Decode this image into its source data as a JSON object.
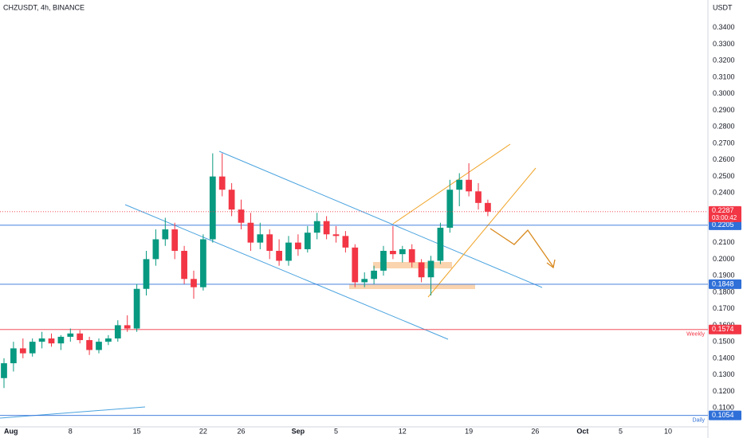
{
  "chart_data": {
    "type": "candlestick",
    "title": "CHZUSDT, 4h, BINANCE",
    "y_axis_label": "USDT",
    "x": [
      0,
      1,
      2,
      3,
      4,
      5,
      6,
      7,
      8,
      9,
      10,
      11,
      12,
      13,
      14,
      15,
      16,
      17,
      18,
      19,
      20,
      21,
      22,
      23,
      24,
      25,
      26,
      27,
      28,
      29,
      30,
      31,
      32,
      33,
      34,
      35,
      36,
      37,
      38,
      39,
      40,
      41,
      42,
      43,
      44,
      45,
      46,
      47,
      48,
      49,
      50,
      51
    ],
    "open": [
      0.128,
      0.137,
      0.146,
      0.143,
      0.15,
      0.152,
      0.149,
      0.153,
      0.155,
      0.151,
      0.145,
      0.15,
      0.152,
      0.16,
      0.158,
      0.182,
      0.2,
      0.212,
      0.218,
      0.205,
      0.188,
      0.183,
      0.212,
      0.25,
      0.242,
      0.23,
      0.222,
      0.21,
      0.215,
      0.205,
      0.199,
      0.21,
      0.206,
      0.216,
      0.223,
      0.215,
      0.214,
      0.207,
      0.186,
      0.188,
      0.193,
      0.205,
      0.203,
      0.206,
      0.198,
      0.189,
      0.199,
      0.219,
      0.242,
      0.248,
      0.241,
      0.234
    ],
    "high": [
      0.14,
      0.15,
      0.152,
      0.152,
      0.156,
      0.155,
      0.154,
      0.158,
      0.157,
      0.153,
      0.152,
      0.154,
      0.163,
      0.166,
      0.185,
      0.205,
      0.218,
      0.225,
      0.222,
      0.208,
      0.193,
      0.215,
      0.264,
      0.264,
      0.246,
      0.236,
      0.228,
      0.222,
      0.218,
      0.212,
      0.214,
      0.215,
      0.22,
      0.228,
      0.226,
      0.22,
      0.217,
      0.209,
      0.192,
      0.196,
      0.208,
      0.22,
      0.208,
      0.209,
      0.2,
      0.202,
      0.222,
      0.248,
      0.252,
      0.258,
      0.246,
      0.236
    ],
    "low": [
      0.122,
      0.132,
      0.14,
      0.141,
      0.146,
      0.147,
      0.145,
      0.15,
      0.149,
      0.142,
      0.143,
      0.148,
      0.15,
      0.156,
      0.156,
      0.178,
      0.196,
      0.208,
      0.2,
      0.185,
      0.176,
      0.181,
      0.21,
      0.238,
      0.226,
      0.218,
      0.205,
      0.206,
      0.2,
      0.196,
      0.196,
      0.202,
      0.204,
      0.212,
      0.212,
      0.21,
      0.204,
      0.183,
      0.183,
      0.185,
      0.19,
      0.2,
      0.198,
      0.195,
      0.186,
      0.178,
      0.197,
      0.216,
      0.232,
      0.238,
      0.23,
      0.226
    ],
    "close": [
      0.137,
      0.146,
      0.143,
      0.15,
      0.152,
      0.149,
      0.153,
      0.155,
      0.151,
      0.145,
      0.15,
      0.152,
      0.16,
      0.158,
      0.182,
      0.2,
      0.212,
      0.218,
      0.205,
      0.188,
      0.183,
      0.212,
      0.25,
      0.242,
      0.23,
      0.222,
      0.21,
      0.215,
      0.205,
      0.199,
      0.21,
      0.206,
      0.216,
      0.223,
      0.215,
      0.214,
      0.207,
      0.186,
      0.188,
      0.193,
      0.205,
      0.203,
      0.206,
      0.198,
      0.189,
      0.199,
      0.219,
      0.242,
      0.248,
      0.241,
      0.234,
      0.2287
    ],
    "up_color": "#089981",
    "down_color": "#f23645",
    "xlim": [
      -0.42,
      74.2
    ],
    "xticks": [
      {
        "value": 0,
        "label": "Aug"
      },
      {
        "value": 7,
        "label": "8"
      },
      {
        "value": 14,
        "label": "15"
      },
      {
        "value": 21,
        "label": "22"
      },
      {
        "value": 25,
        "label": "26"
      },
      {
        "value": 31,
        "label": "Sep"
      },
      {
        "value": 35,
        "label": "5"
      },
      {
        "value": 42,
        "label": "12"
      },
      {
        "value": 49,
        "label": "19"
      },
      {
        "value": 56,
        "label": "26"
      },
      {
        "value": 61,
        "label": "Oct"
      },
      {
        "value": 65,
        "label": "5"
      },
      {
        "value": 70,
        "label": "10"
      }
    ],
    "ylim": [
      0.0985,
      0.3568
    ],
    "yticks": [
      {
        "value": 0.34,
        "label": "0.3400"
      },
      {
        "value": 0.33,
        "label": "0.3300"
      },
      {
        "value": 0.32,
        "label": "0.3200"
      },
      {
        "value": 0.31,
        "label": "0.3100"
      },
      {
        "value": 0.3,
        "label": "0.3000"
      },
      {
        "value": 0.29,
        "label": "0.2900"
      },
      {
        "value": 0.28,
        "label": "0.2800"
      },
      {
        "value": 0.27,
        "label": "0.2700"
      },
      {
        "value": 0.26,
        "label": "0.2600"
      },
      {
        "value": 0.25,
        "label": "0.2500"
      },
      {
        "value": 0.24,
        "label": "0.2400"
      },
      {
        "value": 0.21,
        "label": "0.2100"
      },
      {
        "value": 0.2,
        "label": "0.2000"
      },
      {
        "value": 0.19,
        "label": "0.1900"
      },
      {
        "value": 0.18,
        "label": "0.1800"
      },
      {
        "value": 0.17,
        "label": "0.1700"
      },
      {
        "value": 0.16,
        "label": "0.1600"
      },
      {
        "value": 0.15,
        "label": "0.1500"
      },
      {
        "value": 0.14,
        "label": "0.1400"
      },
      {
        "value": 0.13,
        "label": "0.1300"
      },
      {
        "value": 0.12,
        "label": "0.1200"
      },
      {
        "value": 0.11,
        "label": "0.1100"
      }
    ],
    "grid": false,
    "current_price": {
      "value": 0.2287,
      "countdown": "03:00:42",
      "color": "#f23645"
    },
    "levels": [
      {
        "value": 0.2205,
        "color": "#2f6fd8"
      },
      {
        "value": 0.1848,
        "color": "#2f6fd8"
      },
      {
        "value": 0.1574,
        "color": "#f23645",
        "name": "Weekly"
      },
      {
        "value": 0.1054,
        "color": "#2f6fd8",
        "name": "Daily"
      }
    ]
  }
}
